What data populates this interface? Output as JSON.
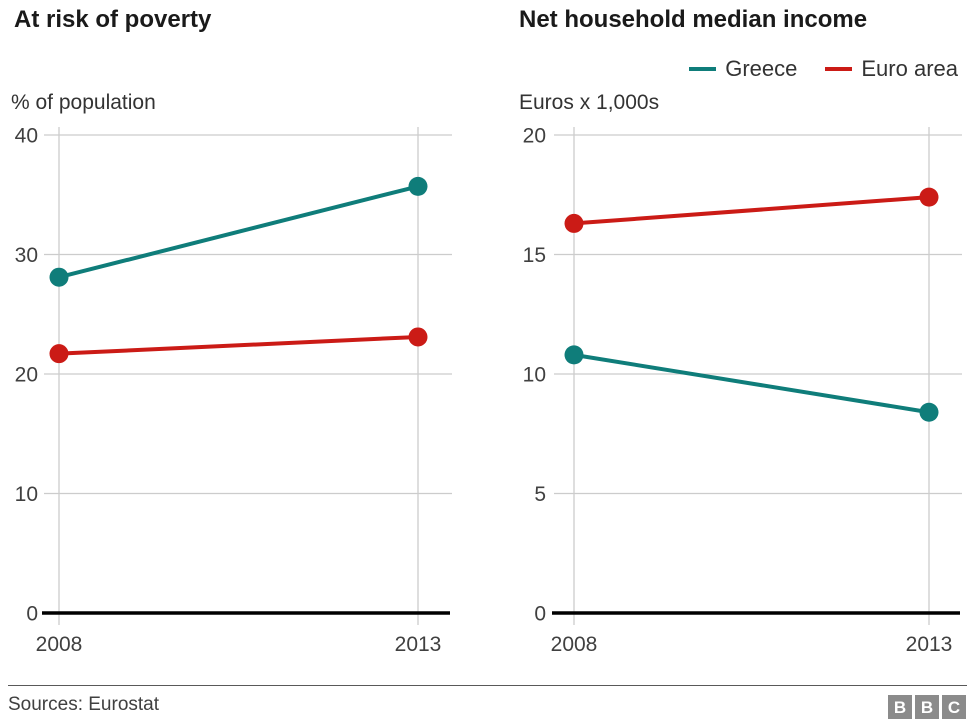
{
  "chart_data": [
    {
      "type": "line",
      "title": "At risk of poverty",
      "ylabel": "% of population",
      "xlabel": "",
      "categories": [
        "2008",
        "2013"
      ],
      "yticks": [
        40,
        30,
        20,
        10,
        0
      ],
      "ylim": [
        0,
        40
      ],
      "grid": true,
      "series": [
        {
          "name": "Greece",
          "color": "#0f7d7a",
          "values": [
            28.1,
            35.7
          ]
        },
        {
          "name": "Euro area",
          "color": "#cb1b16",
          "values": [
            21.7,
            23.1
          ]
        }
      ]
    },
    {
      "type": "line",
      "title": "Net household median income",
      "ylabel": "Euros x 1,000s",
      "xlabel": "",
      "categories": [
        "2008",
        "2013"
      ],
      "yticks": [
        20,
        15,
        10,
        5,
        0
      ],
      "ylim": [
        0,
        20
      ],
      "grid": true,
      "legend_position": "top-right",
      "series": [
        {
          "name": "Greece",
          "color": "#0f7d7a",
          "values": [
            10.8,
            8.4
          ]
        },
        {
          "name": "Euro area",
          "color": "#cb1b16",
          "values": [
            16.3,
            17.4
          ]
        }
      ]
    }
  ],
  "legend": {
    "items": [
      {
        "label": "Greece",
        "color": "#0f7d7a"
      },
      {
        "label": "Euro area",
        "color": "#cb1b16"
      }
    ]
  },
  "footer": {
    "sources": "Sources: Eurostat",
    "logo": [
      "B",
      "B",
      "C"
    ]
  },
  "colors": {
    "greece": "#0f7d7a",
    "euro_area": "#cb1b16",
    "gridline": "#cccccc",
    "axis_baseline": "#000000",
    "tick_text": "#404040",
    "title_text": "#1a1a1a"
  }
}
